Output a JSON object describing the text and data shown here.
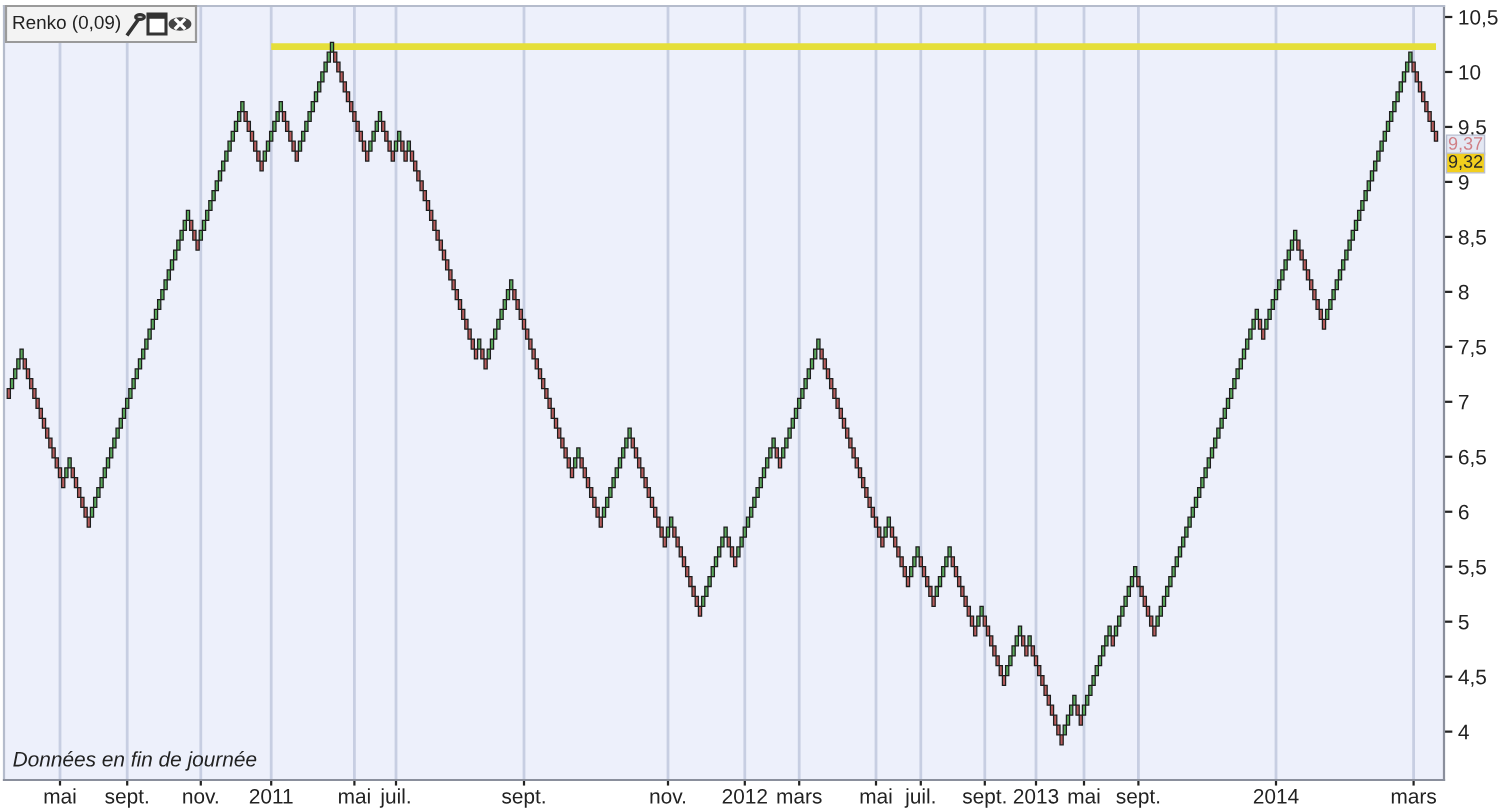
{
  "chart_data": {
    "type": "bar",
    "title": "Renko (0,09)",
    "annotations": [
      "Données en fin de journée",
      "9,37",
      "9,32"
    ],
    "categories": [
      null,
      null,
      null,
      null,
      null,
      null,
      null,
      null,
      null,
      null,
      null,
      null,
      null,
      null,
      null,
      null,
      "mai",
      null,
      null,
      null,
      null,
      null,
      null,
      null,
      null,
      null,
      null,
      null,
      null,
      null,
      null,
      null,
      null,
      null,
      null,
      null,
      null,
      "sept.",
      null,
      null,
      null,
      null,
      null,
      null,
      null,
      null,
      null,
      null,
      null,
      null,
      null,
      null,
      null,
      null,
      null,
      null,
      null,
      null,
      null,
      null,
      "nov.",
      null,
      null,
      null,
      null,
      null,
      null,
      null,
      null,
      null,
      null,
      null,
      null,
      null,
      null,
      null,
      null,
      null,
      null,
      null,
      null,
      null,
      "2011",
      null,
      null,
      null,
      null,
      null,
      null,
      null,
      null,
      null,
      null,
      null,
      null,
      null,
      null,
      null,
      null,
      null,
      null,
      null,
      null,
      null,
      null,
      null,
      null,
      null,
      "mai",
      null,
      null,
      null,
      null,
      null,
      null,
      null,
      null,
      null,
      null,
      null,
      null,
      "juil.",
      null,
      null,
      null,
      null,
      null,
      null,
      null,
      null,
      null,
      null,
      null,
      null,
      null,
      null,
      null,
      null,
      null,
      null,
      null,
      null,
      null,
      null,
      null,
      null,
      null,
      null,
      null,
      null,
      null,
      null,
      null,
      null,
      null,
      null,
      null,
      null,
      null,
      null,
      null,
      "sept.",
      null,
      null,
      null,
      null,
      null,
      null,
      null,
      null,
      null,
      null,
      null,
      null,
      null,
      null,
      null,
      null,
      null,
      null,
      null,
      null,
      null,
      null,
      null,
      null,
      null,
      null,
      null,
      null,
      null,
      null,
      null,
      null,
      null,
      null,
      null,
      null,
      null,
      null,
      null,
      null,
      null,
      null,
      null,
      null,
      "nov.",
      null,
      null,
      null,
      null,
      null,
      null,
      null,
      null,
      null,
      null,
      null,
      null,
      null,
      null,
      null,
      null,
      null,
      null,
      null,
      null,
      null,
      null,
      null,
      "2012",
      null,
      null,
      null,
      null,
      null,
      null,
      null,
      null,
      null,
      null,
      null,
      null,
      null,
      null,
      null,
      null,
      "mars",
      null,
      null,
      null,
      null,
      null,
      null,
      null,
      null,
      null,
      null,
      null,
      null,
      null,
      null,
      null,
      null,
      null,
      null,
      null,
      null,
      null,
      null,
      null,
      "mai",
      null,
      null,
      null,
      null,
      null,
      null,
      null,
      null,
      null,
      null,
      null,
      null,
      null,
      "juil.",
      null,
      null,
      null,
      null,
      null,
      null,
      null,
      null,
      null,
      null,
      null,
      null,
      null,
      null,
      null,
      null,
      null,
      null,
      null,
      "sept.",
      null,
      null,
      null,
      null,
      null,
      null,
      null,
      null,
      null,
      null,
      null,
      null,
      null,
      null,
      null,
      "2013",
      null,
      null,
      null,
      null,
      null,
      null,
      null,
      null,
      null,
      null,
      null,
      null,
      null,
      null,
      "mai",
      null,
      null,
      null,
      null,
      null,
      null,
      null,
      null,
      null,
      null,
      null,
      null,
      null,
      null,
      null,
      null,
      "sept.",
      null,
      null,
      null,
      null,
      null,
      null,
      null,
      null,
      null,
      null,
      null,
      null,
      null,
      null,
      null,
      null,
      null,
      null,
      null,
      null,
      null,
      null,
      null,
      null,
      null,
      null,
      null,
      null,
      null,
      null,
      null,
      null,
      null,
      null,
      null,
      null,
      null,
      null,
      null,
      null,
      null,
      null,
      "2014",
      null,
      null,
      null,
      null,
      null,
      null,
      null,
      null,
      null,
      null,
      null,
      null,
      null,
      null,
      null,
      null,
      null,
      null,
      null,
      null,
      null,
      null,
      null,
      null,
      null,
      null,
      null,
      null,
      null,
      null,
      null,
      null,
      null,
      null,
      null,
      null,
      null,
      null,
      null,
      null,
      null,
      null,
      "mars",
      null,
      null,
      null,
      null,
      null,
      null,
      null
    ],
    "ylim": [
      3.56,
      10.6
    ],
    "yticks": [
      4,
      {
        "value": 4.5,
        "label": "4,5"
      },
      5,
      {
        "value": 5.5,
        "label": "5,5"
      },
      6,
      {
        "value": 6.5,
        "label": "6,5"
      },
      7,
      {
        "value": 7.5,
        "label": "7,5"
      },
      8,
      {
        "value": 8.5,
        "label": "8,5"
      },
      9,
      {
        "value": 9.5,
        "label": "9,5"
      },
      10,
      {
        "value": 10.5,
        "label": "10,5"
      }
    ],
    "grid": "x",
    "series": [
      {
        "values": [
          0.09,
          0.09,
          0.09,
          0.09,
          0.09,
          0.09,
          0.09,
          0.09,
          0.09,
          0.09,
          0.09,
          0.09,
          0.09,
          0.09,
          0.09,
          0.09,
          0.09,
          0.09,
          0.09,
          0.09,
          0.09,
          0.09,
          0.09,
          0.09,
          0.09,
          0.09,
          0.09,
          0.09,
          0.09,
          0.09,
          0.09,
          0.09,
          0.09,
          0.09,
          0.09,
          0.09,
          0.09,
          0.09,
          0.09,
          0.09,
          0.09,
          0.09,
          0.09,
          0.09,
          0.09,
          0.09,
          0.09,
          0.09,
          0.09,
          0.09,
          0.09,
          0.09,
          0.09,
          0.09,
          0.09,
          0.09,
          0.09,
          0.09,
          0.09,
          0.09,
          0.09,
          0.09,
          0.09,
          0.09,
          0.09,
          0.09,
          0.09,
          0.09,
          0.09,
          0.09,
          0.09,
          0.09,
          0.09,
          0.09,
          0.09,
          0.09,
          0.09,
          0.09,
          0.09,
          0.09,
          0.09,
          0.09,
          0.09,
          0.09,
          0.09,
          0.09,
          0.09,
          0.09,
          0.09,
          0.09,
          0.09,
          0.09,
          0.09,
          0.09,
          0.09,
          0.09,
          0.09,
          0.09,
          0.09,
          0.09,
          0.09,
          0.09,
          0.09,
          0.09,
          0.09,
          0.09,
          0.09,
          0.09,
          0.09,
          0.09,
          0.09,
          0.09,
          0.09,
          0.09,
          0.09,
          0.09,
          0.09,
          0.09,
          0.09,
          0.09,
          0.09,
          0.09,
          0.09,
          0.09,
          0.09,
          0.09,
          0.09,
          0.09,
          0.09,
          0.09,
          0.09,
          0.09,
          0.09,
          0.09,
          0.09,
          0.09,
          0.09,
          0.09,
          0.09,
          0.09,
          0.09,
          0.09,
          0.09,
          0.09,
          0.09,
          0.09,
          0.09,
          0.09,
          0.09,
          0.09,
          0.09,
          0.09,
          0.09,
          0.09,
          0.09,
          0.09,
          0.09,
          0.09,
          0.09,
          0.09,
          0.09,
          0.09,
          0.09,
          0.09,
          0.09,
          0.09,
          0.09,
          0.09,
          0.09,
          0.09,
          0.09,
          0.09,
          0.09,
          0.09,
          0.09,
          0.09,
          0.09,
          0.09,
          0.09,
          0.09,
          0.09,
          0.09,
          0.09,
          0.09,
          0.09,
          0.09,
          0.09,
          0.09,
          0.09,
          0.09,
          0.09,
          0.09,
          0.09,
          0.09,
          0.09,
          0.09,
          0.09,
          0.09,
          0.09,
          0.09,
          0.09,
          0.09,
          0.09,
          0.09,
          0.09,
          0.09,
          0.09,
          0.09,
          0.09,
          0.09,
          0.09,
          0.09,
          0.09,
          0.09,
          0.09,
          0.09,
          0.09,
          0.09,
          0.09,
          0.09,
          0.09,
          0.09,
          0.09,
          0.09,
          0.09,
          0.09,
          0.09,
          0.09,
          0.09,
          0.09,
          0.09,
          0.09,
          0.09,
          0.09,
          0.09,
          0.09,
          0.09,
          0.09,
          0.09,
          0.09,
          0.09,
          0.09,
          0.09,
          0.09,
          0.09,
          0.09,
          0.09,
          0.09,
          0.09,
          0.09,
          0.09,
          0.09,
          0.09,
          0.09,
          0.09,
          0.09,
          0.09,
          0.09,
          0.09,
          0.09,
          0.09,
          0.09,
          0.09,
          0.09,
          0.09,
          0.09,
          0.09,
          0.09,
          0.09,
          0.09,
          0.09,
          0.09,
          0.09,
          0.09,
          0.09,
          0.09,
          0.09,
          0.09,
          0.09,
          0.09,
          0.09,
          0.09,
          0.09,
          0.09,
          0.09,
          0.09,
          0.09,
          0.09,
          0.09,
          0.09,
          0.09,
          0.09,
          0.09,
          0.09,
          0.09,
          0.09,
          0.09,
          0.09,
          0.09,
          0.09,
          0.09,
          0.09,
          0.09,
          0.09,
          0.09,
          0.09,
          0.09,
          0.09,
          0.09,
          0.09,
          0.09,
          0.09,
          0.09,
          0.09,
          0.09,
          0.09,
          0.09,
          0.09,
          0.09,
          0.09,
          0.09,
          0.09,
          0.09,
          0.09,
          0.09,
          0.09,
          0.09,
          0.09,
          0.09,
          0.09,
          0.09,
          0.09,
          0.09,
          0.09,
          0.09,
          0.09,
          0.09,
          0.09,
          0.09,
          0.09,
          0.09,
          0.09,
          0.09,
          0.09,
          0.09,
          0.09,
          0.09,
          0.09,
          0.09,
          0.09,
          0.09,
          0.09,
          0.09,
          0.09,
          0.09,
          0.09,
          0.09,
          0.09,
          0.09,
          0.09,
          0.09,
          0.09,
          0.09,
          0.09,
          0.09,
          0.09,
          0.09,
          0.09,
          0.09,
          0.09,
          0.09,
          0.09,
          0.09,
          0.09,
          0.09,
          0.09,
          0.09,
          0.09,
          0.09,
          0.09,
          0.09,
          0.09,
          0.09,
          0.09,
          0.09,
          0.09,
          0.09,
          0.09,
          0.09,
          0.09,
          0.09,
          0.09,
          0.09,
          0.09,
          0.09,
          0.09,
          0.09,
          0.09,
          0.09,
          0.09,
          0.09,
          0.09,
          0.09,
          0.09,
          0.09,
          0.09,
          0.09,
          0.09,
          0.09,
          0.09,
          0.09,
          0.09,
          0.09,
          0.09,
          0.09,
          0.09,
          0.09,
          0.09,
          0.09,
          0.09,
          0.09,
          0.09,
          0.09,
          0.09,
          0.09,
          0.09,
          0.09,
          0.09,
          0.09,
          0.09,
          0.09,
          0.09,
          0.09,
          0.09,
          0.09,
          0.09,
          0.09,
          0.09,
          0.09,
          0.09,
          0.09,
          0.09,
          0.09,
          0.09,
          0.09,
          0.09,
          0.09
        ],
        "base": [
          7.03,
          7.12,
          7.21,
          7.3,
          7.39,
          7.3,
          7.21,
          7.12,
          7.03,
          6.94,
          6.85,
          6.76,
          6.67,
          6.58,
          6.49,
          6.4,
          6.31,
          6.22,
          6.31,
          6.4,
          6.31,
          6.22,
          6.13,
          6.04,
          5.95,
          5.86,
          5.95,
          6.04,
          6.13,
          6.22,
          6.31,
          6.4,
          6.49,
          6.58,
          6.67,
          6.76,
          6.85,
          6.94,
          7.03,
          7.12,
          7.21,
          7.3,
          7.39,
          7.48,
          7.57,
          7.66,
          7.75,
          7.84,
          7.93,
          8.02,
          8.11,
          8.2,
          8.29,
          8.38,
          8.47,
          8.56,
          8.65,
          8.56,
          8.47,
          8.38,
          8.47,
          8.56,
          8.65,
          8.74,
          8.83,
          8.92,
          9.01,
          9.1,
          9.19,
          9.28,
          9.37,
          9.46,
          9.55,
          9.64,
          9.55,
          9.46,
          9.37,
          9.28,
          9.19,
          9.1,
          9.19,
          9.28,
          9.37,
          9.46,
          9.55,
          9.64,
          9.55,
          9.46,
          9.37,
          9.28,
          9.19,
          9.28,
          9.37,
          9.46,
          9.55,
          9.64,
          9.73,
          9.82,
          9.91,
          10.0,
          10.09,
          10.18,
          10.09,
          10.0,
          9.91,
          9.82,
          9.73,
          9.64,
          9.55,
          9.46,
          9.37,
          9.28,
          9.19,
          9.28,
          9.37,
          9.46,
          9.55,
          9.46,
          9.37,
          9.28,
          9.19,
          9.28,
          9.37,
          9.28,
          9.19,
          9.28,
          9.19,
          9.1,
          9.01,
          8.92,
          8.83,
          8.74,
          8.65,
          8.56,
          8.47,
          8.38,
          8.29,
          8.2,
          8.11,
          8.02,
          7.93,
          7.84,
          7.75,
          7.66,
          7.57,
          7.48,
          7.39,
          7.48,
          7.39,
          7.3,
          7.39,
          7.48,
          7.57,
          7.66,
          7.75,
          7.84,
          7.93,
          8.02,
          7.93,
          7.84,
          7.75,
          7.66,
          7.57,
          7.48,
          7.39,
          7.3,
          7.21,
          7.12,
          7.03,
          6.94,
          6.85,
          6.76,
          6.67,
          6.58,
          6.49,
          6.4,
          6.31,
          6.4,
          6.49,
          6.4,
          6.31,
          6.22,
          6.13,
          6.04,
          5.95,
          5.86,
          5.95,
          6.04,
          6.13,
          6.22,
          6.31,
          6.4,
          6.49,
          6.58,
          6.67,
          6.58,
          6.49,
          6.4,
          6.31,
          6.22,
          6.13,
          6.04,
          5.95,
          5.86,
          5.77,
          5.68,
          5.77,
          5.86,
          5.77,
          5.68,
          5.59,
          5.5,
          5.41,
          5.32,
          5.23,
          5.14,
          5.05,
          5.14,
          5.23,
          5.32,
          5.41,
          5.5,
          5.59,
          5.68,
          5.77,
          5.68,
          5.59,
          5.5,
          5.59,
          5.68,
          5.77,
          5.86,
          5.95,
          6.04,
          6.13,
          6.22,
          6.31,
          6.4,
          6.49,
          6.58,
          6.49,
          6.4,
          6.49,
          6.58,
          6.67,
          6.76,
          6.85,
          6.94,
          7.03,
          7.12,
          7.21,
          7.3,
          7.39,
          7.48,
          7.39,
          7.3,
          7.21,
          7.12,
          7.03,
          6.94,
          6.85,
          6.76,
          6.67,
          6.58,
          6.49,
          6.4,
          6.31,
          6.22,
          6.13,
          6.04,
          5.95,
          5.86,
          5.77,
          5.68,
          5.77,
          5.86,
          5.77,
          5.68,
          5.59,
          5.5,
          5.41,
          5.32,
          5.41,
          5.5,
          5.59,
          5.5,
          5.41,
          5.32,
          5.23,
          5.14,
          5.23,
          5.32,
          5.41,
          5.5,
          5.59,
          5.5,
          5.41,
          5.32,
          5.23,
          5.14,
          5.05,
          4.96,
          4.87,
          4.96,
          5.05,
          4.96,
          4.87,
          4.78,
          4.69,
          4.6,
          4.51,
          4.42,
          4.51,
          4.6,
          4.69,
          4.78,
          4.87,
          4.78,
          4.69,
          4.78,
          4.69,
          4.6,
          4.51,
          4.42,
          4.33,
          4.24,
          4.15,
          4.06,
          3.97,
          3.88,
          3.97,
          4.06,
          4.15,
          4.24,
          4.15,
          4.06,
          4.15,
          4.24,
          4.33,
          4.42,
          4.51,
          4.6,
          4.69,
          4.78,
          4.87,
          4.78,
          4.87,
          4.96,
          5.05,
          5.14,
          5.23,
          5.32,
          5.41,
          5.32,
          5.23,
          5.14,
          5.05,
          4.96,
          4.87,
          4.96,
          5.05,
          5.14,
          5.23,
          5.32,
          5.41,
          5.5,
          5.59,
          5.68,
          5.77,
          5.86,
          5.95,
          6.04,
          6.13,
          6.22,
          6.31,
          6.4,
          6.49,
          6.58,
          6.67,
          6.76,
          6.85,
          6.94,
          7.03,
          7.12,
          7.21,
          7.3,
          7.39,
          7.48,
          7.57,
          7.66,
          7.75,
          7.66,
          7.57,
          7.66,
          7.75,
          7.84,
          7.93,
          8.02,
          8.11,
          8.2,
          8.29,
          8.38,
          8.47,
          8.38,
          8.29,
          8.2,
          8.11,
          8.02,
          7.93,
          7.84,
          7.75,
          7.66,
          7.75,
          7.84,
          7.93,
          8.02,
          8.11,
          8.2,
          8.29,
          8.38,
          8.47,
          8.56,
          8.65,
          8.74,
          8.83,
          8.92,
          9.01,
          9.1,
          9.19,
          9.28,
          9.37,
          9.46,
          9.55,
          9.64,
          9.73,
          9.82,
          9.91,
          10.0,
          10.09,
          10.0,
          9.91,
          9.82,
          9.73,
          9.64,
          9.55,
          9.46,
          9.37
        ],
        "colors": [
          "#b85c5c",
          "#5aa85a",
          "#5aa85a",
          "#5aa85a",
          "#5aa85a",
          "#b85c5c",
          "#b85c5c",
          "#b85c5c",
          "#b85c5c",
          "#b85c5c",
          "#b85c5c",
          "#b85c5c",
          "#b85c5c",
          "#b85c5c",
          "#b85c5c",
          "#b85c5c",
          "#b85c5c",
          "#b85c5c",
          "#5aa85a",
          "#5aa85a",
          "#b85c5c",
          "#b85c5c",
          "#b85c5c",
          "#b85c5c",
          "#b85c5c",
          "#b85c5c",
          "#5aa85a",
          "#5aa85a",
          "#5aa85a",
          "#5aa85a",
          "#5aa85a",
          "#5aa85a",
          "#5aa85a",
          "#5aa85a",
          "#5aa85a",
          "#5aa85a",
          "#5aa85a",
          "#5aa85a",
          "#5aa85a",
          "#5aa85a",
          "#5aa85a",
          "#5aa85a",
          "#5aa85a",
          "#5aa85a",
          "#5aa85a",
          "#5aa85a",
          "#5aa85a",
          "#5aa85a",
          "#5aa85a",
          "#5aa85a",
          "#5aa85a",
          "#5aa85a",
          "#5aa85a",
          "#5aa85a",
          "#5aa85a",
          "#5aa85a",
          "#5aa85a",
          "#b85c5c",
          "#b85c5c",
          "#b85c5c",
          "#5aa85a",
          "#5aa85a",
          "#5aa85a",
          "#5aa85a",
          "#5aa85a",
          "#5aa85a",
          "#5aa85a",
          "#5aa85a",
          "#5aa85a",
          "#5aa85a",
          "#5aa85a",
          "#5aa85a",
          "#5aa85a",
          "#5aa85a",
          "#b85c5c",
          "#b85c5c",
          "#b85c5c",
          "#b85c5c",
          "#b85c5c",
          "#b85c5c",
          "#5aa85a",
          "#5aa85a",
          "#5aa85a",
          "#5aa85a",
          "#5aa85a",
          "#5aa85a",
          "#b85c5c",
          "#b85c5c",
          "#b85c5c",
          "#b85c5c",
          "#b85c5c",
          "#5aa85a",
          "#5aa85a",
          "#5aa85a",
          "#5aa85a",
          "#5aa85a",
          "#5aa85a",
          "#5aa85a",
          "#5aa85a",
          "#5aa85a",
          "#5aa85a",
          "#5aa85a",
          "#b85c5c",
          "#b85c5c",
          "#b85c5c",
          "#b85c5c",
          "#b85c5c",
          "#b85c5c",
          "#b85c5c",
          "#b85c5c",
          "#b85c5c",
          "#b85c5c",
          "#b85c5c",
          "#5aa85a",
          "#5aa85a",
          "#5aa85a",
          "#5aa85a",
          "#b85c5c",
          "#b85c5c",
          "#b85c5c",
          "#b85c5c",
          "#5aa85a",
          "#5aa85a",
          "#b85c5c",
          "#b85c5c",
          "#5aa85a",
          "#b85c5c",
          "#b85c5c",
          "#b85c5c",
          "#b85c5c",
          "#b85c5c",
          "#b85c5c",
          "#b85c5c",
          "#b85c5c",
          "#b85c5c",
          "#b85c5c",
          "#b85c5c",
          "#b85c5c",
          "#b85c5c",
          "#b85c5c",
          "#b85c5c",
          "#b85c5c",
          "#b85c5c",
          "#b85c5c",
          "#b85c5c",
          "#b85c5c",
          "#b85c5c",
          "#5aa85a",
          "#b85c5c",
          "#b85c5c",
          "#5aa85a",
          "#5aa85a",
          "#5aa85a",
          "#5aa85a",
          "#5aa85a",
          "#5aa85a",
          "#5aa85a",
          "#5aa85a",
          "#b85c5c",
          "#b85c5c",
          "#b85c5c",
          "#b85c5c",
          "#b85c5c",
          "#b85c5c",
          "#b85c5c",
          "#b85c5c",
          "#b85c5c",
          "#b85c5c",
          "#b85c5c",
          "#b85c5c",
          "#b85c5c",
          "#b85c5c",
          "#b85c5c",
          "#b85c5c",
          "#b85c5c",
          "#b85c5c",
          "#b85c5c",
          "#5aa85a",
          "#5aa85a",
          "#b85c5c",
          "#b85c5c",
          "#b85c5c",
          "#b85c5c",
          "#b85c5c",
          "#b85c5c",
          "#b85c5c",
          "#5aa85a",
          "#5aa85a",
          "#5aa85a",
          "#5aa85a",
          "#5aa85a",
          "#5aa85a",
          "#5aa85a",
          "#5aa85a",
          "#5aa85a",
          "#b85c5c",
          "#b85c5c",
          "#b85c5c",
          "#b85c5c",
          "#b85c5c",
          "#b85c5c",
          "#b85c5c",
          "#b85c5c",
          "#b85c5c",
          "#b85c5c",
          "#b85c5c",
          "#5aa85a",
          "#5aa85a",
          "#b85c5c",
          "#b85c5c",
          "#b85c5c",
          "#b85c5c",
          "#b85c5c",
          "#b85c5c",
          "#b85c5c",
          "#b85c5c",
          "#b85c5c",
          "#5aa85a",
          "#5aa85a",
          "#5aa85a",
          "#5aa85a",
          "#5aa85a",
          "#5aa85a",
          "#5aa85a",
          "#5aa85a",
          "#b85c5c",
          "#b85c5c",
          "#b85c5c",
          "#5aa85a",
          "#5aa85a",
          "#5aa85a",
          "#5aa85a",
          "#5aa85a",
          "#5aa85a",
          "#5aa85a",
          "#5aa85a",
          "#5aa85a",
          "#5aa85a",
          "#5aa85a",
          "#5aa85a",
          "#b85c5c",
          "#b85c5c",
          "#5aa85a",
          "#5aa85a",
          "#5aa85a",
          "#5aa85a",
          "#5aa85a",
          "#5aa85a",
          "#5aa85a",
          "#5aa85a",
          "#5aa85a",
          "#5aa85a",
          "#5aa85a",
          "#5aa85a",
          "#b85c5c",
          "#b85c5c",
          "#b85c5c",
          "#b85c5c",
          "#b85c5c",
          "#b85c5c",
          "#b85c5c",
          "#b85c5c",
          "#b85c5c",
          "#b85c5c",
          "#b85c5c",
          "#b85c5c",
          "#b85c5c",
          "#b85c5c",
          "#b85c5c",
          "#b85c5c",
          "#b85c5c",
          "#b85c5c",
          "#b85c5c",
          "#b85c5c",
          "#5aa85a",
          "#5aa85a",
          "#b85c5c",
          "#b85c5c",
          "#b85c5c",
          "#b85c5c",
          "#b85c5c",
          "#b85c5c",
          "#5aa85a",
          "#5aa85a",
          "#5aa85a",
          "#b85c5c",
          "#b85c5c",
          "#b85c5c",
          "#b85c5c",
          "#b85c5c",
          "#5aa85a",
          "#5aa85a",
          "#5aa85a",
          "#5aa85a",
          "#5aa85a",
          "#b85c5c",
          "#b85c5c",
          "#b85c5c",
          "#b85c5c",
          "#b85c5c",
          "#b85c5c",
          "#b85c5c",
          "#b85c5c",
          "#5aa85a",
          "#5aa85a",
          "#b85c5c",
          "#b85c5c",
          "#b85c5c",
          "#b85c5c",
          "#b85c5c",
          "#b85c5c",
          "#b85c5c",
          "#5aa85a",
          "#5aa85a",
          "#5aa85a",
          "#5aa85a",
          "#5aa85a",
          "#b85c5c",
          "#b85c5c",
          "#5aa85a",
          "#b85c5c",
          "#b85c5c",
          "#b85c5c",
          "#b85c5c",
          "#b85c5c",
          "#b85c5c",
          "#b85c5c",
          "#b85c5c",
          "#b85c5c",
          "#b85c5c",
          "#5aa85a",
          "#5aa85a",
          "#5aa85a",
          "#5aa85a",
          "#b85c5c",
          "#b85c5c",
          "#5aa85a",
          "#5aa85a",
          "#5aa85a",
          "#5aa85a",
          "#5aa85a",
          "#5aa85a",
          "#5aa85a",
          "#5aa85a",
          "#5aa85a",
          "#b85c5c",
          "#5aa85a",
          "#5aa85a",
          "#5aa85a",
          "#5aa85a",
          "#5aa85a",
          "#5aa85a",
          "#5aa85a",
          "#b85c5c",
          "#b85c5c",
          "#b85c5c",
          "#b85c5c",
          "#b85c5c",
          "#b85c5c",
          "#5aa85a",
          "#5aa85a",
          "#5aa85a",
          "#5aa85a",
          "#5aa85a",
          "#5aa85a",
          "#5aa85a",
          "#5aa85a",
          "#5aa85a",
          "#5aa85a",
          "#5aa85a",
          "#5aa85a",
          "#5aa85a",
          "#5aa85a",
          "#5aa85a",
          "#5aa85a",
          "#5aa85a",
          "#5aa85a",
          "#5aa85a",
          "#5aa85a",
          "#5aa85a",
          "#5aa85a",
          "#5aa85a",
          "#5aa85a",
          "#5aa85a",
          "#5aa85a",
          "#5aa85a",
          "#5aa85a",
          "#5aa85a",
          "#5aa85a",
          "#5aa85a",
          "#5aa85a",
          "#b85c5c",
          "#b85c5c",
          "#5aa85a",
          "#5aa85a",
          "#5aa85a",
          "#5aa85a",
          "#5aa85a",
          "#5aa85a",
          "#5aa85a",
          "#5aa85a",
          "#5aa85a",
          "#5aa85a",
          "#b85c5c",
          "#b85c5c",
          "#b85c5c",
          "#b85c5c",
          "#b85c5c",
          "#b85c5c",
          "#b85c5c",
          "#b85c5c",
          "#b85c5c",
          "#5aa85a",
          "#5aa85a",
          "#5aa85a",
          "#5aa85a",
          "#5aa85a",
          "#5aa85a",
          "#5aa85a",
          "#5aa85a",
          "#5aa85a",
          "#5aa85a",
          "#5aa85a",
          "#5aa85a",
          "#5aa85a",
          "#5aa85a",
          "#5aa85a",
          "#5aa85a",
          "#5aa85a",
          "#5aa85a",
          "#5aa85a",
          "#5aa85a",
          "#5aa85a",
          "#5aa85a",
          "#5aa85a",
          "#5aa85a",
          "#5aa85a",
          "#5aa85a",
          "#5aa85a",
          "#b85c5c",
          "#b85c5c",
          "#b85c5c",
          "#b85c5c",
          "#b85c5c",
          "#b85c5c",
          "#b85c5c",
          "#b85c5c"
        ]
      },
      {
        "type": "line",
        "color": "#e5df3a",
        "values": [
          null,
          null,
          null,
          null,
          null,
          null,
          null,
          null,
          null,
          null,
          null,
          null,
          null,
          null,
          null,
          null,
          null,
          null,
          null,
          null,
          null,
          null,
          null,
          null,
          null,
          null,
          null,
          null,
          null,
          null,
          null,
          null,
          null,
          null,
          null,
          null,
          null,
          null,
          null,
          null,
          null,
          null,
          null,
          null,
          null,
          null,
          null,
          null,
          null,
          null,
          null,
          null,
          null,
          null,
          null,
          null,
          null,
          null,
          null,
          null,
          null,
          null,
          null,
          null,
          null,
          null,
          null,
          null,
          null,
          null,
          null,
          null,
          null,
          null,
          null,
          null,
          null,
          null,
          null,
          null,
          null,
          null,
          10.23,
          10.23,
          10.23,
          10.23,
          10.23,
          10.23,
          10.23,
          10.23,
          10.23,
          10.23,
          10.23,
          10.23,
          10.23,
          10.23,
          10.23,
          10.23,
          10.23,
          10.23,
          10.23,
          10.23,
          10.23,
          10.23,
          10.23,
          10.23,
          10.23,
          10.23,
          10.23,
          10.23,
          10.23,
          10.23,
          10.23,
          10.23,
          10.23,
          10.23,
          10.23,
          10.23,
          10.23,
          10.23,
          10.23,
          10.23,
          10.23,
          10.23,
          10.23,
          10.23,
          10.23,
          10.23,
          10.23,
          10.23,
          10.23,
          10.23,
          10.23,
          10.23,
          10.23,
          10.23,
          10.23,
          10.23,
          10.23,
          10.23,
          10.23,
          10.23,
          10.23,
          10.23,
          10.23,
          10.23,
          10.23,
          10.23,
          10.23,
          10.23,
          10.23,
          10.23,
          10.23,
          10.23,
          10.23,
          10.23,
          10.23,
          10.23,
          10.23,
          10.23,
          10.23,
          10.23,
          10.23,
          10.23,
          10.23,
          10.23,
          10.23,
          10.23,
          10.23,
          10.23,
          10.23,
          10.23,
          10.23,
          10.23,
          10.23,
          10.23,
          10.23,
          10.23,
          10.23,
          10.23,
          10.23,
          10.23,
          10.23,
          10.23,
          10.23,
          10.23,
          10.23,
          10.23,
          10.23,
          10.23,
          10.23,
          10.23,
          10.23,
          10.23,
          10.23,
          10.23,
          10.23,
          10.23,
          10.23,
          10.23,
          10.23,
          10.23,
          10.23,
          10.23,
          10.23,
          10.23,
          10.23,
          10.23,
          10.23,
          10.23,
          10.23,
          10.23,
          10.23,
          10.23,
          10.23,
          10.23,
          10.23,
          10.23,
          10.23,
          10.23,
          10.23,
          10.23,
          10.23,
          10.23,
          10.23,
          10.23,
          10.23,
          10.23,
          10.23,
          10.23,
          10.23,
          10.23,
          10.23,
          10.23,
          10.23,
          10.23,
          10.23,
          10.23,
          10.23,
          10.23,
          10.23,
          10.23,
          10.23,
          10.23,
          10.23,
          10.23,
          10.23,
          10.23,
          10.23,
          10.23,
          10.23,
          10.23,
          10.23,
          10.23,
          10.23,
          10.23,
          10.23,
          10.23,
          10.23,
          10.23,
          10.23,
          10.23,
          10.23,
          10.23,
          10.23,
          10.23,
          10.23,
          10.23,
          10.23,
          10.23,
          10.23,
          10.23,
          10.23,
          10.23,
          10.23,
          10.23,
          10.23,
          10.23,
          10.23,
          10.23,
          10.23,
          10.23,
          10.23,
          10.23,
          10.23,
          10.23,
          10.23,
          10.23,
          10.23,
          10.23,
          10.23,
          10.23,
          10.23,
          10.23,
          10.23,
          10.23,
          10.23,
          10.23,
          10.23,
          10.23,
          10.23,
          10.23,
          10.23,
          10.23,
          10.23,
          10.23,
          10.23,
          10.23,
          10.23,
          10.23,
          10.23,
          10.23,
          10.23,
          10.23,
          10.23,
          10.23,
          10.23,
          10.23,
          10.23,
          10.23,
          10.23,
          10.23,
          10.23,
          10.23,
          10.23,
          10.23,
          10.23,
          10.23,
          10.23,
          10.23,
          10.23,
          10.23,
          10.23,
          10.23,
          10.23,
          10.23,
          10.23,
          10.23,
          10.23,
          10.23,
          10.23,
          10.23,
          10.23,
          10.23,
          10.23,
          10.23,
          10.23,
          10.23,
          10.23,
          10.23,
          10.23,
          10.23,
          10.23,
          10.23,
          10.23,
          10.23,
          10.23,
          10.23,
          10.23,
          10.23,
          10.23,
          10.23,
          10.23,
          10.23,
          10.23,
          10.23,
          10.23,
          10.23,
          10.23,
          10.23,
          10.23,
          10.23,
          10.23,
          10.23,
          10.23,
          10.23,
          10.23,
          10.23,
          10.23,
          10.23,
          10.23,
          10.23,
          10.23,
          10.23,
          10.23,
          10.23,
          10.23,
          10.23,
          10.23,
          10.23,
          10.23,
          10.23,
          10.23,
          10.23,
          10.23,
          10.23,
          10.23,
          10.23,
          10.23,
          10.23,
          10.23,
          10.23,
          10.23,
          10.23,
          10.23,
          10.23,
          10.23,
          10.23,
          10.23,
          10.23,
          10.23,
          10.23,
          10.23,
          10.23,
          10.23,
          10.23,
          10.23,
          10.23,
          10.23,
          10.23,
          10.23,
          10.23,
          10.23,
          10.23,
          10.23,
          10.23,
          10.23,
          10.23,
          10.23,
          10.23,
          10.23,
          10.23,
          10.23,
          10.23,
          10.23,
          10.23,
          10.23,
          10.23,
          10.23,
          10.23,
          10.23,
          10.23,
          10.23,
          10.23,
          10.23,
          10.23,
          10.23
        ]
      }
    ]
  }
}
